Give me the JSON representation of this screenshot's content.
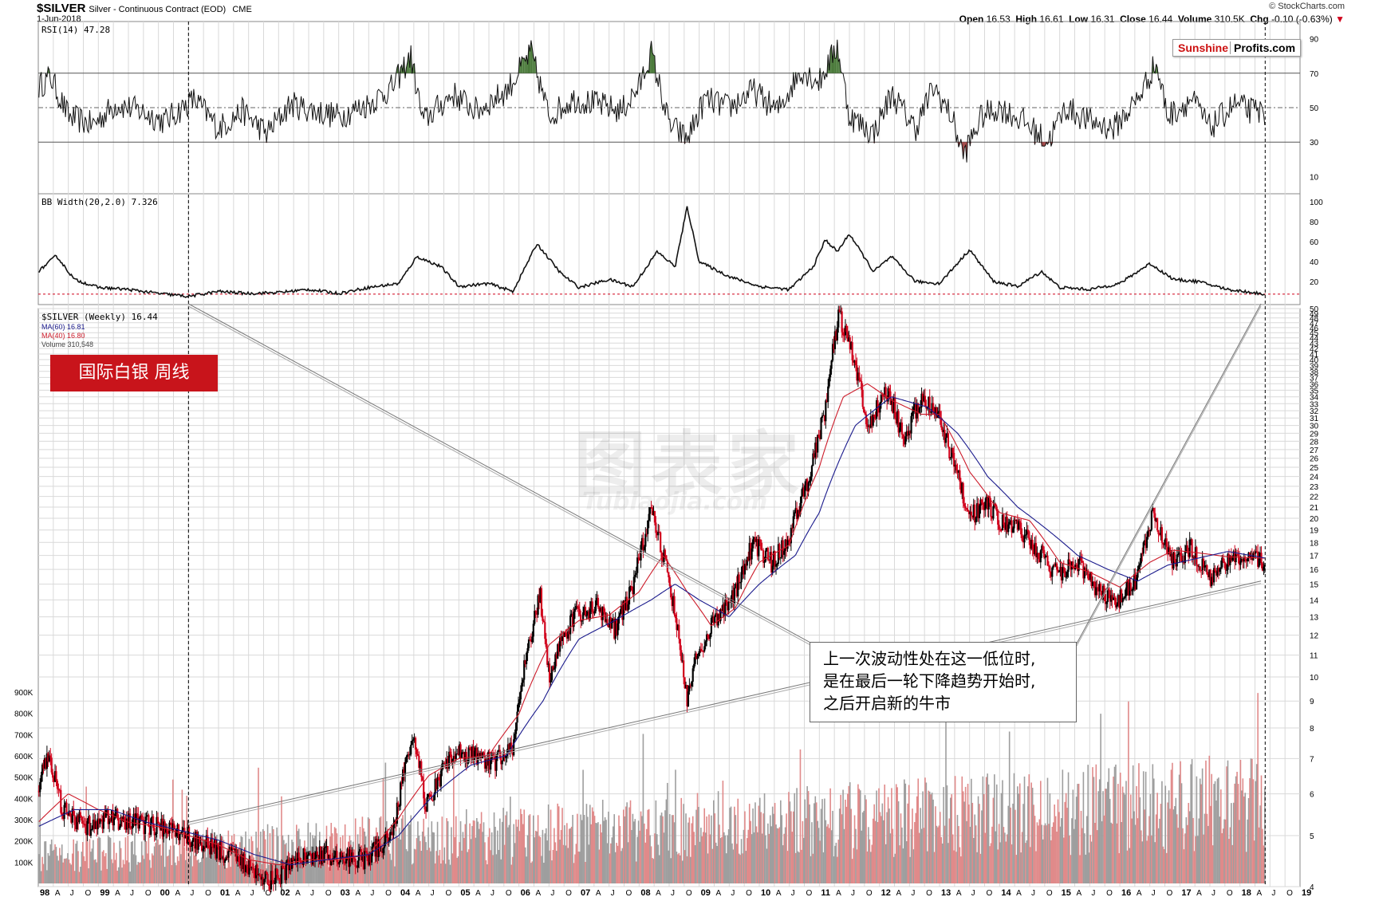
{
  "header": {
    "symbol": "$SILVER",
    "description": "Silver - Continuous Contract (EOD)",
    "exchange": "CME",
    "date": "1-Jun-2018",
    "credit": "© StockCharts.com",
    "open_label": "Open",
    "open": "16.53",
    "high_label": "High",
    "high": "16.61",
    "low_label": "Low",
    "low": "16.31",
    "close_label": "Close",
    "close": "16.44",
    "volume_label": "Volume",
    "volume": "310.5K",
    "chg_label": "Chg",
    "chg": "-0.10 (-0.63%)"
  },
  "logo": {
    "part1": "Sunshine",
    "part2": "Profits.com"
  },
  "badge_text": "国际白银  周线",
  "annotation": {
    "line1": "上一次波动性处在这一低位时,",
    "line2": "是在最后一轮下降趋势开始时,",
    "line3": "之后开启新的牛市"
  },
  "watermark": {
    "main": "图表家",
    "sub": "Tubiaojia.com"
  },
  "legend": {
    "rsi": "RSI(14) 47.28",
    "bbw": "BB Width(20,2.0) 7.326",
    "price": "$SILVER (Weekly) 16.44",
    "ma60": "MA(60) 16.81",
    "ma40": "MA(40) 16.80",
    "volume": "Volume 310,548"
  },
  "colors": {
    "up": "#000000",
    "down": "#d0021b",
    "ma60": "#1a1a8c",
    "ma40": "#cc1b2a",
    "rsi_over": "#4a7a3a",
    "rsi_under": "#a04040",
    "volume_up": "#9e9e9e",
    "volume_down": "#e08a8a",
    "badge": "#c8141b",
    "grid": "#d9d9d9"
  },
  "chart_data": {
    "type": "candlestick-weekly-with-indicators",
    "x_axis_labels": [
      "98",
      "A",
      "J",
      "O",
      "99",
      "A",
      "J",
      "O",
      "00",
      "A",
      "J",
      "O",
      "01",
      "A",
      "J",
      "O",
      "02",
      "A",
      "J",
      "O",
      "03",
      "A",
      "J",
      "O",
      "04",
      "A",
      "J",
      "O",
      "05",
      "A",
      "J",
      "O",
      "06",
      "A",
      "J",
      "O",
      "07",
      "A",
      "J",
      "O",
      "08",
      "A",
      "J",
      "O",
      "09",
      "A",
      "J",
      "O",
      "10",
      "A",
      "J",
      "O",
      "11",
      "A",
      "J",
      "O",
      "12",
      "A",
      "J",
      "O",
      "13",
      "A",
      "J",
      "O",
      "14",
      "A",
      "J",
      "O",
      "15",
      "A",
      "J",
      "O",
      "16",
      "A",
      "J",
      "O",
      "17",
      "A",
      "J",
      "O",
      "18",
      "A",
      "J",
      "O",
      "19"
    ],
    "price_axis": {
      "scale": "log",
      "ylim": [
        4,
        50
      ],
      "ticks": [
        4,
        5,
        6,
        7,
        8,
        9,
        10,
        11,
        12,
        13,
        14,
        15,
        16,
        17,
        18,
        19,
        20,
        21,
        22,
        23,
        24,
        25,
        26,
        27,
        28,
        29,
        30,
        31,
        32,
        33,
        34,
        35,
        36,
        37,
        38,
        39,
        40,
        41,
        42,
        43,
        44,
        45,
        46,
        47,
        48,
        49,
        50
      ]
    },
    "volume_axis": {
      "ticks": [
        "100K",
        "200K",
        "300K",
        "400K",
        "500K",
        "600K",
        "700K",
        "800K",
        "900K"
      ],
      "ylim": [
        0,
        900000
      ]
    },
    "rsi_axis": {
      "ticks": [
        10,
        30,
        50,
        70,
        90
      ],
      "ylim": [
        0,
        100
      ],
      "bands": [
        30,
        50,
        70
      ]
    },
    "bbw_axis": {
      "ticks": [
        20,
        40,
        60,
        80,
        100
      ],
      "ylim": [
        0,
        105
      ]
    },
    "price_path": [
      [
        1998.0,
        6.0
      ],
      [
        1998.15,
        7.2
      ],
      [
        1998.4,
        5.6
      ],
      [
        1998.8,
        5.2
      ],
      [
        1999.2,
        5.4
      ],
      [
        1999.6,
        5.3
      ],
      [
        2000.0,
        5.2
      ],
      [
        2000.5,
        5.0
      ],
      [
        2001.0,
        4.7
      ],
      [
        2001.5,
        4.4
      ],
      [
        2001.9,
        4.1
      ],
      [
        2002.3,
        4.5
      ],
      [
        2002.7,
        4.6
      ],
      [
        2003.0,
        4.6
      ],
      [
        2003.4,
        4.5
      ],
      [
        2003.9,
        5.0
      ],
      [
        2004.25,
        7.9
      ],
      [
        2004.45,
        5.6
      ],
      [
        2004.9,
        7.2
      ],
      [
        2005.2,
        7.1
      ],
      [
        2005.6,
        6.9
      ],
      [
        2005.9,
        7.4
      ],
      [
        2006.35,
        14.4
      ],
      [
        2006.5,
        10.0
      ],
      [
        2006.9,
        13.0
      ],
      [
        2007.3,
        13.6
      ],
      [
        2007.6,
        12.3
      ],
      [
        2007.9,
        14.8
      ],
      [
        2008.2,
        20.5
      ],
      [
        2008.4,
        17.0
      ],
      [
        2008.6,
        13.0
      ],
      [
        2008.8,
        9.0
      ],
      [
        2008.95,
        11.0
      ],
      [
        2009.3,
        13.0
      ],
      [
        2009.6,
        14.5
      ],
      [
        2009.9,
        18.0
      ],
      [
        2010.2,
        16.5
      ],
      [
        2010.5,
        18.2
      ],
      [
        2010.8,
        23.5
      ],
      [
        2011.1,
        32.0
      ],
      [
        2011.32,
        48.5
      ],
      [
        2011.6,
        39.0
      ],
      [
        2011.8,
        30.0
      ],
      [
        2012.15,
        35.0
      ],
      [
        2012.4,
        28.0
      ],
      [
        2012.7,
        34.0
      ],
      [
        2013.0,
        31.0
      ],
      [
        2013.3,
        24.0
      ],
      [
        2013.5,
        20.0
      ],
      [
        2013.8,
        21.5
      ],
      [
        2014.0,
        19.6
      ],
      [
        2014.3,
        19.0
      ],
      [
        2014.7,
        17.0
      ],
      [
        2014.9,
        15.7
      ],
      [
        2015.3,
        16.5
      ],
      [
        2015.6,
        14.8
      ],
      [
        2015.95,
        13.8
      ],
      [
        2016.3,
        15.5
      ],
      [
        2016.55,
        20.5
      ],
      [
        2016.9,
        16.5
      ],
      [
        2017.2,
        17.6
      ],
      [
        2017.5,
        15.5
      ],
      [
        2017.8,
        16.8
      ],
      [
        2018.1,
        17.0
      ],
      [
        2018.42,
        16.44
      ]
    ],
    "ma40_path": [
      [
        1998.0,
        5.3
      ],
      [
        1998.5,
        6.0
      ],
      [
        1999.0,
        5.6
      ],
      [
        1999.5,
        5.3
      ],
      [
        2000.0,
        5.2
      ],
      [
        2000.5,
        5.0
      ],
      [
        2001.0,
        4.8
      ],
      [
        2001.5,
        4.5
      ],
      [
        2002.0,
        4.4
      ],
      [
        2002.5,
        4.5
      ],
      [
        2003.0,
        4.5
      ],
      [
        2003.5,
        4.6
      ],
      [
        2004.0,
        5.4
      ],
      [
        2004.5,
        6.5
      ],
      [
        2005.0,
        7.0
      ],
      [
        2005.5,
        7.1
      ],
      [
        2006.0,
        8.5
      ],
      [
        2006.5,
        11.5
      ],
      [
        2007.0,
        12.8
      ],
      [
        2007.5,
        13.1
      ],
      [
        2008.0,
        14.5
      ],
      [
        2008.4,
        17.0
      ],
      [
        2008.8,
        14.5
      ],
      [
        2009.2,
        12.5
      ],
      [
        2009.6,
        13.5
      ],
      [
        2010.0,
        16.5
      ],
      [
        2010.5,
        17.8
      ],
      [
        2011.0,
        25.0
      ],
      [
        2011.4,
        34.0
      ],
      [
        2011.8,
        36.0
      ],
      [
        2012.2,
        33.5
      ],
      [
        2012.7,
        31.5
      ],
      [
        2013.0,
        31.5
      ],
      [
        2013.5,
        24.5
      ],
      [
        2014.0,
        20.5
      ],
      [
        2014.5,
        19.8
      ],
      [
        2015.0,
        16.5
      ],
      [
        2015.5,
        15.8
      ],
      [
        2016.0,
        14.8
      ],
      [
        2016.5,
        16.5
      ],
      [
        2016.9,
        17.4
      ],
      [
        2017.3,
        17.2
      ],
      [
        2017.8,
        16.9
      ],
      [
        2018.42,
        16.8
      ]
    ],
    "ma60_path": [
      [
        1998.0,
        5.2
      ],
      [
        1998.6,
        5.6
      ],
      [
        1999.2,
        5.6
      ],
      [
        1999.8,
        5.3
      ],
      [
        2000.4,
        5.1
      ],
      [
        2001.0,
        4.9
      ],
      [
        2001.6,
        4.6
      ],
      [
        2002.2,
        4.4
      ],
      [
        2002.8,
        4.5
      ],
      [
        2003.5,
        4.6
      ],
      [
        2004.0,
        5.0
      ],
      [
        2004.6,
        6.0
      ],
      [
        2005.2,
        6.8
      ],
      [
        2005.8,
        7.1
      ],
      [
        2006.4,
        9.0
      ],
      [
        2007.0,
        11.8
      ],
      [
        2007.6,
        12.8
      ],
      [
        2008.2,
        14.0
      ],
      [
        2008.6,
        15.0
      ],
      [
        2009.0,
        14.0
      ],
      [
        2009.5,
        13.0
      ],
      [
        2010.0,
        15.0
      ],
      [
        2010.6,
        17.0
      ],
      [
        2011.0,
        20.5
      ],
      [
        2011.6,
        30.0
      ],
      [
        2012.2,
        34.0
      ],
      [
        2012.8,
        32.5
      ],
      [
        2013.3,
        29.0
      ],
      [
        2013.8,
        24.0
      ],
      [
        2014.3,
        21.0
      ],
      [
        2014.8,
        19.0
      ],
      [
        2015.3,
        17.0
      ],
      [
        2015.8,
        16.0
      ],
      [
        2016.3,
        15.2
      ],
      [
        2016.8,
        16.3
      ],
      [
        2017.3,
        16.8
      ],
      [
        2017.8,
        17.3
      ],
      [
        2018.42,
        16.81
      ]
    ],
    "rsi_path": [
      [
        1998.0,
        62
      ],
      [
        1998.2,
        68
      ],
      [
        1998.5,
        45
      ],
      [
        1998.9,
        40
      ],
      [
        1999.3,
        52
      ],
      [
        1999.7,
        48
      ],
      [
        2000.1,
        42
      ],
      [
        2000.6,
        55
      ],
      [
        2001.0,
        38
      ],
      [
        2001.4,
        48
      ],
      [
        2001.8,
        35
      ],
      [
        2002.2,
        52
      ],
      [
        2002.6,
        48
      ],
      [
        2003.0,
        45
      ],
      [
        2003.5,
        52
      ],
      [
        2003.9,
        62
      ],
      [
        2004.2,
        80
      ],
      [
        2004.4,
        42
      ],
      [
        2004.9,
        58
      ],
      [
        2005.3,
        48
      ],
      [
        2005.8,
        60
      ],
      [
        2006.2,
        82
      ],
      [
        2006.5,
        45
      ],
      [
        2006.9,
        55
      ],
      [
        2007.3,
        52
      ],
      [
        2007.7,
        48
      ],
      [
        2008.0,
        62
      ],
      [
        2008.2,
        82
      ],
      [
        2008.5,
        40
      ],
      [
        2008.8,
        32
      ],
      [
        2009.1,
        55
      ],
      [
        2009.5,
        50
      ],
      [
        2009.9,
        60
      ],
      [
        2010.3,
        48
      ],
      [
        2010.7,
        72
      ],
      [
        2011.0,
        65
      ],
      [
        2011.3,
        86
      ],
      [
        2011.5,
        45
      ],
      [
        2011.9,
        35
      ],
      [
        2012.2,
        58
      ],
      [
        2012.6,
        38
      ],
      [
        2012.9,
        62
      ],
      [
        2013.2,
        45
      ],
      [
        2013.4,
        22
      ],
      [
        2013.7,
        45
      ],
      [
        2014.0,
        50
      ],
      [
        2014.4,
        42
      ],
      [
        2014.8,
        30
      ],
      [
        2015.1,
        50
      ],
      [
        2015.5,
        42
      ],
      [
        2015.9,
        38
      ],
      [
        2016.3,
        55
      ],
      [
        2016.6,
        76
      ],
      [
        2016.8,
        45
      ],
      [
        2017.2,
        55
      ],
      [
        2017.5,
        38
      ],
      [
        2017.9,
        52
      ],
      [
        2018.2,
        48
      ],
      [
        2018.42,
        47.28
      ]
    ],
    "bbw_path": [
      [
        1998.0,
        30
      ],
      [
        1998.3,
        46
      ],
      [
        1998.6,
        22
      ],
      [
        1999.0,
        14
      ],
      [
        1999.5,
        12
      ],
      [
        2000.0,
        8
      ],
      [
        2000.5,
        5
      ],
      [
        2001.0,
        10
      ],
      [
        2001.5,
        8
      ],
      [
        2002.0,
        9
      ],
      [
        2002.5,
        12
      ],
      [
        2003.0,
        8
      ],
      [
        2003.5,
        14
      ],
      [
        2004.0,
        18
      ],
      [
        2004.3,
        45
      ],
      [
        2004.7,
        35
      ],
      [
        2005.0,
        15
      ],
      [
        2005.5,
        18
      ],
      [
        2005.9,
        10
      ],
      [
        2006.3,
        58
      ],
      [
        2006.7,
        28
      ],
      [
        2007.0,
        14
      ],
      [
        2007.5,
        22
      ],
      [
        2007.9,
        15
      ],
      [
        2008.3,
        50
      ],
      [
        2008.6,
        35
      ],
      [
        2008.8,
        95
      ],
      [
        2009.0,
        40
      ],
      [
        2009.5,
        25
      ],
      [
        2010.0,
        15
      ],
      [
        2010.5,
        12
      ],
      [
        2010.9,
        35
      ],
      [
        2011.1,
        62
      ],
      [
        2011.3,
        50
      ],
      [
        2011.5,
        68
      ],
      [
        2011.9,
        30
      ],
      [
        2012.2,
        45
      ],
      [
        2012.6,
        20
      ],
      [
        2013.0,
        18
      ],
      [
        2013.5,
        52
      ],
      [
        2013.9,
        20
      ],
      [
        2014.3,
        15
      ],
      [
        2014.7,
        30
      ],
      [
        2015.0,
        14
      ],
      [
        2015.5,
        12
      ],
      [
        2016.0,
        18
      ],
      [
        2016.5,
        38
      ],
      [
        2016.9,
        22
      ],
      [
        2017.3,
        20
      ],
      [
        2017.8,
        12
      ],
      [
        2018.42,
        7.326
      ]
    ]
  }
}
